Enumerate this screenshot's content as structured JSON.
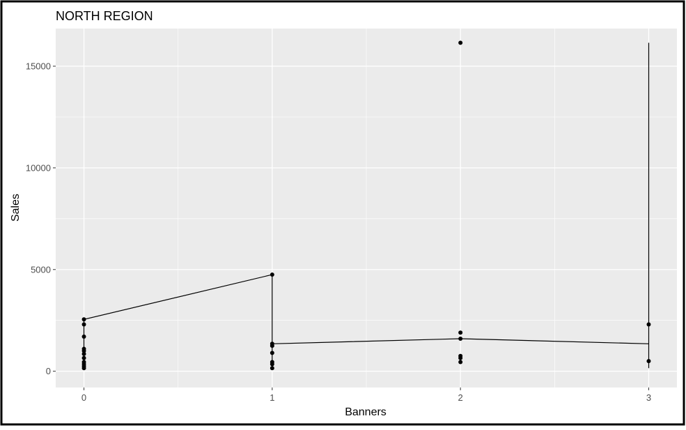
{
  "chart_data": {
    "type": "line",
    "title": "NORTH REGION",
    "xlabel": "Banners",
    "ylabel": "Sales",
    "xlim": [
      -0.15,
      3.15
    ],
    "ylim": [
      -800,
      16850
    ],
    "xticks": [
      0,
      1,
      2,
      3
    ],
    "xtick_labels": [
      "0",
      "1",
      "2",
      "3"
    ],
    "yticks": [
      0,
      5000,
      10000,
      15000
    ],
    "ytick_labels": [
      "0",
      "5000",
      "10000",
      "15000"
    ],
    "grid": true,
    "legend": "none",
    "colors": {
      "panel": "#ebebeb",
      "grid": "#ffffff",
      "line": "#000000",
      "point": "#000000",
      "tick_text": "#4d4d4d",
      "frame": "#000000"
    },
    "series": [
      {
        "x": [
          0,
          0,
          0,
          0,
          0,
          0,
          0,
          0,
          0,
          0,
          0,
          1,
          1,
          1,
          1,
          1,
          1,
          1,
          2,
          2,
          2,
          2,
          2,
          2,
          3,
          3
        ],
        "y": [
          150,
          250,
          350,
          450,
          650,
          850,
          1000,
          1100,
          1700,
          2300,
          2550,
          4750,
          150,
          350,
          450,
          900,
          1250,
          1350,
          1600,
          650,
          450,
          750,
          1900,
          16150,
          500,
          2300
        ]
      }
    ],
    "path_order_y": [
      150,
      250,
      350,
      450,
      650,
      850,
      1000,
      1100,
      1700,
      2300,
      2550,
      4750,
      150,
      350,
      450,
      900,
      1250,
      1350,
      1600,
      1350,
      650,
      150,
      450,
      750,
      1900,
      16150,
      500,
      2300
    ]
  }
}
